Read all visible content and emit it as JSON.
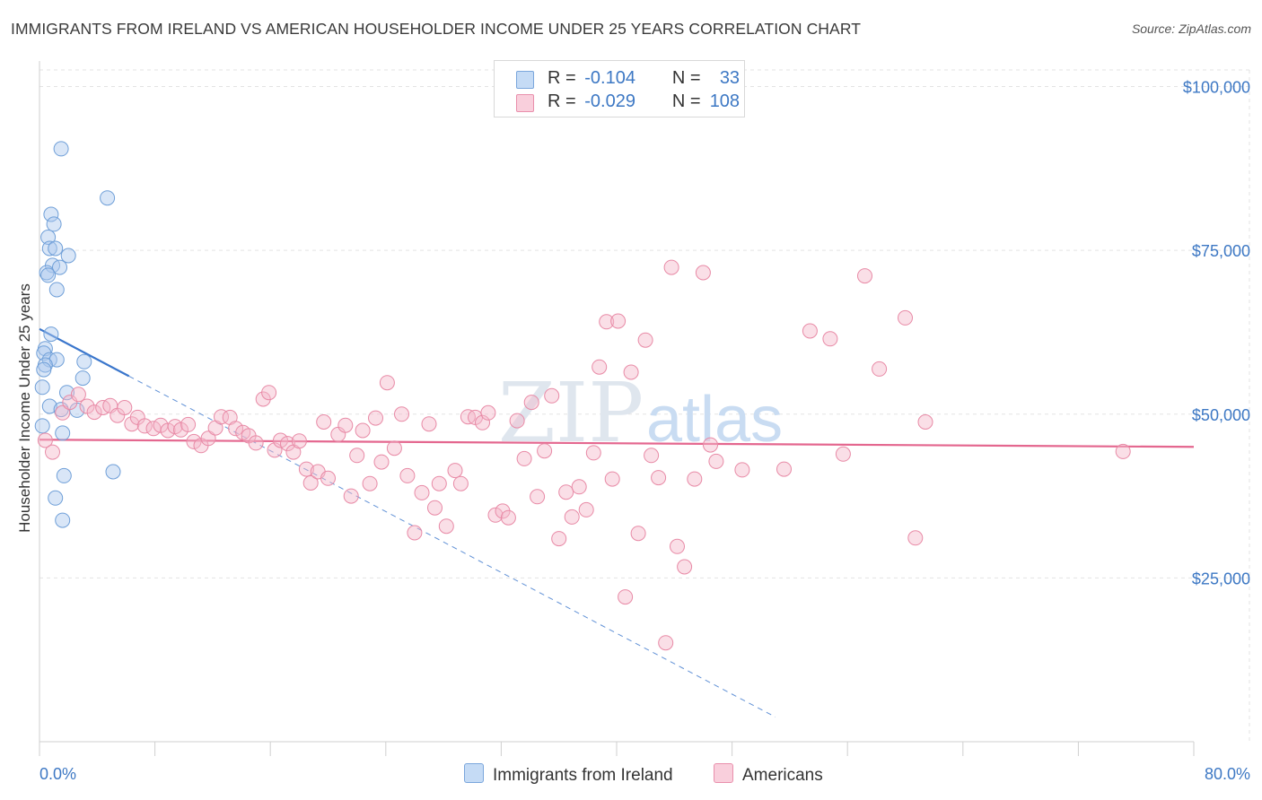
{
  "title": "IMMIGRANTS FROM IRELAND VS AMERICAN HOUSEHOLDER INCOME UNDER 25 YEARS CORRELATION CHART",
  "source": "Source: ZipAtlas.com",
  "watermark": {
    "zip": "ZIP",
    "atlas": "atlas"
  },
  "legend": {
    "r_label": "R =",
    "n_label": "N =",
    "rows": [
      {
        "r": "-0.104",
        "n": "33",
        "color": "#aac8ee"
      },
      {
        "r": "-0.029",
        "n": "108",
        "color": "#f4b8c9"
      }
    ]
  },
  "bottom_legend": [
    {
      "label": "Immigrants from Ireland",
      "color": "#aac8ee"
    },
    {
      "label": "Americans",
      "color": "#f4b8c9"
    }
  ],
  "chart_data": {
    "type": "scatter",
    "title": "IMMIGRANTS FROM IRELAND VS AMERICAN HOUSEHOLDER INCOME UNDER 25 YEARS CORRELATION CHART",
    "xlabel": "",
    "ylabel": "Householder Income Under 25 years",
    "xlim": [
      0,
      80
    ],
    "ylim": [
      0,
      105000
    ],
    "x_tick_labels": [
      "0.0%",
      "80.0%"
    ],
    "y_ticks": [
      25000,
      50000,
      75000,
      100000
    ],
    "y_tick_labels": [
      "$25,000",
      "$50,000",
      "$75,000",
      "$100,000"
    ],
    "grid": true,
    "series": [
      {
        "name": "Immigrants from Ireland",
        "color": "#aac8ee",
        "stroke": "#6f9fd8",
        "trend": {
          "x0": 0.0,
          "y0": 63000,
          "x1": 6.2,
          "y1": 55800,
          "color": "#3a76cc",
          "dashed_to_x": 51.0
        },
        "points": [
          [
            1.5,
            90500
          ],
          [
            4.7,
            83000
          ],
          [
            0.8,
            80500
          ],
          [
            1.0,
            79000
          ],
          [
            0.6,
            77000
          ],
          [
            0.7,
            75300
          ],
          [
            1.1,
            75300
          ],
          [
            2.0,
            74200
          ],
          [
            0.9,
            72700
          ],
          [
            1.4,
            72400
          ],
          [
            0.5,
            71600
          ],
          [
            0.6,
            71200
          ],
          [
            1.2,
            69000
          ],
          [
            0.8,
            62200
          ],
          [
            0.4,
            60000
          ],
          [
            0.3,
            59300
          ],
          [
            0.7,
            58300
          ],
          [
            1.2,
            58300
          ],
          [
            3.1,
            58000
          ],
          [
            0.4,
            57500
          ],
          [
            0.3,
            56800
          ],
          [
            3.0,
            55500
          ],
          [
            0.2,
            54100
          ],
          [
            1.9,
            53300
          ],
          [
            0.7,
            51200
          ],
          [
            1.5,
            50700
          ],
          [
            2.6,
            50600
          ],
          [
            0.2,
            48200
          ],
          [
            1.6,
            47100
          ],
          [
            5.1,
            41200
          ],
          [
            1.7,
            40600
          ],
          [
            1.1,
            37200
          ],
          [
            1.6,
            33800
          ]
        ]
      },
      {
        "name": "Americans",
        "color": "#f4b8c9",
        "stroke": "#e88aa6",
        "trend": {
          "x0": 0.0,
          "y0": 46100,
          "x1": 80.0,
          "y1": 45000,
          "color": "#e4678f"
        },
        "points": [
          [
            0.4,
            46000
          ],
          [
            0.9,
            44200
          ],
          [
            1.6,
            50200
          ],
          [
            2.1,
            51800
          ],
          [
            2.7,
            53000
          ],
          [
            3.3,
            51200
          ],
          [
            3.8,
            50300
          ],
          [
            4.4,
            51000
          ],
          [
            4.9,
            51300
          ],
          [
            5.4,
            49800
          ],
          [
            5.9,
            51000
          ],
          [
            6.4,
            48500
          ],
          [
            6.8,
            49500
          ],
          [
            7.3,
            48200
          ],
          [
            7.9,
            47800
          ],
          [
            8.4,
            48300
          ],
          [
            8.9,
            47500
          ],
          [
            9.4,
            48100
          ],
          [
            9.8,
            47600
          ],
          [
            10.3,
            48400
          ],
          [
            10.7,
            45800
          ],
          [
            11.2,
            45200
          ],
          [
            11.7,
            46300
          ],
          [
            12.2,
            47900
          ],
          [
            12.6,
            49600
          ],
          [
            13.2,
            49500
          ],
          [
            13.6,
            47800
          ],
          [
            14.1,
            47200
          ],
          [
            14.5,
            46700
          ],
          [
            15.0,
            45600
          ],
          [
            15.5,
            52300
          ],
          [
            15.9,
            53300
          ],
          [
            16.3,
            44500
          ],
          [
            16.7,
            46000
          ],
          [
            17.2,
            45500
          ],
          [
            17.6,
            44200
          ],
          [
            18.0,
            45900
          ],
          [
            18.5,
            41600
          ],
          [
            18.8,
            39500
          ],
          [
            19.3,
            41200
          ],
          [
            19.7,
            48800
          ],
          [
            20.0,
            40200
          ],
          [
            20.7,
            46900
          ],
          [
            21.2,
            48300
          ],
          [
            21.6,
            37500
          ],
          [
            22.0,
            43700
          ],
          [
            22.4,
            47500
          ],
          [
            22.9,
            39400
          ],
          [
            23.3,
            49400
          ],
          [
            23.7,
            42700
          ],
          [
            24.1,
            54800
          ],
          [
            24.6,
            44800
          ],
          [
            25.1,
            50000
          ],
          [
            25.5,
            40600
          ],
          [
            26.0,
            31900
          ],
          [
            26.5,
            38000
          ],
          [
            27.0,
            48500
          ],
          [
            27.4,
            35700
          ],
          [
            27.7,
            39400
          ],
          [
            28.2,
            32900
          ],
          [
            28.8,
            41400
          ],
          [
            29.2,
            39400
          ],
          [
            29.7,
            49600
          ],
          [
            30.2,
            49500
          ],
          [
            30.7,
            48700
          ],
          [
            31.1,
            50200
          ],
          [
            31.6,
            34600
          ],
          [
            32.1,
            35200
          ],
          [
            32.5,
            34200
          ],
          [
            33.1,
            49000
          ],
          [
            33.6,
            43200
          ],
          [
            34.1,
            51800
          ],
          [
            34.5,
            37400
          ],
          [
            35.0,
            44400
          ],
          [
            35.5,
            52800
          ],
          [
            36.0,
            31000
          ],
          [
            36.5,
            38100
          ],
          [
            36.9,
            34300
          ],
          [
            37.4,
            38900
          ],
          [
            37.9,
            35400
          ],
          [
            38.4,
            44100
          ],
          [
            38.8,
            57200
          ],
          [
            39.3,
            64100
          ],
          [
            39.7,
            40100
          ],
          [
            40.1,
            64200
          ],
          [
            40.6,
            22100
          ],
          [
            41.0,
            56400
          ],
          [
            41.5,
            31800
          ],
          [
            42.0,
            61300
          ],
          [
            42.4,
            43700
          ],
          [
            42.9,
            40300
          ],
          [
            43.4,
            15100
          ],
          [
            43.8,
            72400
          ],
          [
            44.2,
            29800
          ],
          [
            44.7,
            26700
          ],
          [
            45.4,
            40100
          ],
          [
            46.0,
            71600
          ],
          [
            46.5,
            45300
          ],
          [
            46.9,
            42800
          ],
          [
            48.7,
            41500
          ],
          [
            51.6,
            41600
          ],
          [
            53.4,
            62700
          ],
          [
            54.8,
            61500
          ],
          [
            55.7,
            43900
          ],
          [
            57.2,
            71100
          ],
          [
            58.2,
            56900
          ],
          [
            60.0,
            64700
          ],
          [
            60.7,
            31100
          ],
          [
            61.4,
            48800
          ],
          [
            75.1,
            44300
          ]
        ]
      }
    ]
  }
}
